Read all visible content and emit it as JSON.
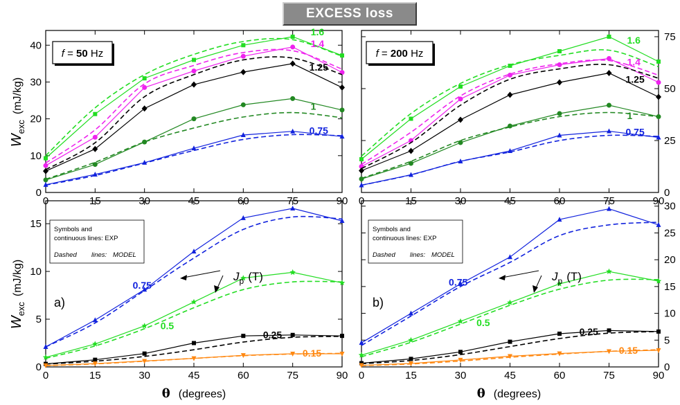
{
  "figure_title": "EXCESS  loss",
  "colors": {
    "1.6": "#22dd22",
    "1.4": "#ee22ee",
    "1.25": "#000000",
    "1": "#228822",
    "0.75": "#1122dd",
    "0.5": "#22dd22",
    "0.25": "#000000",
    "0.15": "#ff8811"
  },
  "legend": {
    "line1": "Symbols and",
    "line2": "continuous lines:   EXP",
    "dashed_a": "Dashed",
    "dashed_b": "lines:",
    "dashed_c": "MODEL"
  },
  "annotations": {
    "jp_J": "J",
    "jp_sub": "p",
    "jp_unit": "(T)",
    "panel_a": "a)",
    "panel_b": "b)",
    "freq_top_left_pre": "f",
    "freq_top_left_eq": " = ",
    "freq_top_left_val": "50",
    "freq_top_left_unit": " Hz",
    "freq_top_right_pre": "f",
    "freq_top_right_eq": " = ",
    "freq_top_right_val": "200",
    "freq_top_right_unit": " Hz"
  },
  "axis_text": {
    "ylabel_W": "W",
    "ylabel_sub": "exc",
    "ylabel_unit": "(mJ/kg)",
    "xlabel_theta": "θ",
    "xlabel_unit": "(degrees)"
  },
  "chart_data": [
    {
      "id": "top-left",
      "type": "line",
      "x": [
        0,
        15,
        30,
        45,
        60,
        75,
        90
      ],
      "xticks": [
        0,
        15,
        30,
        45,
        60,
        75,
        90
      ],
      "xlim": [
        0,
        90
      ],
      "ylim": [
        0,
        44
      ],
      "yticks": [
        0,
        10,
        20,
        30,
        40
      ],
      "yaxis_side": "left",
      "grid": false,
      "series": [
        {
          "name": "1.6",
          "marker": "square",
          "values": [
            9.3,
            21.3,
            31.0,
            36.0,
            40.0,
            42.3,
            37.2
          ],
          "model": [
            10.0,
            23.0,
            32.0,
            37.5,
            41.0,
            41.5,
            37.0
          ]
        },
        {
          "name": "1.4",
          "marker": "circle",
          "values": [
            7.3,
            15.0,
            28.5,
            33.0,
            37.0,
            39.5,
            32.6
          ],
          "model": [
            8.0,
            17.0,
            29.5,
            34.5,
            38.0,
            38.5,
            33.5
          ]
        },
        {
          "name": "1.25",
          "marker": "diamond",
          "values": [
            5.8,
            11.8,
            22.8,
            29.3,
            32.7,
            35.0,
            28.5
          ],
          "model": [
            6.2,
            13.5,
            26.0,
            32.0,
            36.0,
            36.5,
            32.0
          ]
        },
        {
          "name": "1",
          "marker": "circle",
          "values": [
            3.4,
            7.6,
            13.7,
            20.0,
            23.8,
            25.5,
            22.4
          ],
          "model": [
            3.6,
            8.2,
            13.7,
            17.5,
            20.5,
            21.7,
            20.3
          ]
        },
        {
          "name": "0.75",
          "marker": "triangle",
          "values": [
            2.1,
            4.9,
            8.1,
            12.0,
            15.6,
            16.6,
            15.2
          ],
          "model": [
            2.0,
            4.6,
            8.0,
            11.4,
            14.4,
            15.7,
            15.4
          ]
        }
      ]
    },
    {
      "id": "top-right",
      "type": "line",
      "x": [
        0,
        15,
        30,
        45,
        60,
        75,
        90
      ],
      "xticks": [
        0,
        15,
        30,
        45,
        60,
        75,
        90
      ],
      "xlim": [
        0,
        90
      ],
      "ylim": [
        0,
        78
      ],
      "yticks": [
        0,
        25,
        50,
        75
      ],
      "yaxis_side": "right",
      "grid": false,
      "series": [
        {
          "name": "1.6",
          "marker": "square",
          "values": [
            16.0,
            35.5,
            51.0,
            61.0,
            68.0,
            75.0,
            63.0
          ],
          "model": [
            17.5,
            38.0,
            52.5,
            61.5,
            66.0,
            68.5,
            60.5
          ]
        },
        {
          "name": "1.4",
          "marker": "circle",
          "values": [
            12.5,
            25.0,
            45.0,
            56.5,
            61.5,
            64.5,
            53.0
          ],
          "model": [
            13.5,
            29.0,
            46.5,
            57.0,
            62.0,
            63.5,
            56.5
          ]
        },
        {
          "name": "1.25",
          "marker": "diamond",
          "values": [
            10.5,
            20.0,
            35.0,
            47.0,
            53.0,
            57.5,
            46.0
          ],
          "model": [
            11.5,
            24.0,
            42.0,
            54.5,
            59.5,
            61.5,
            55.0
          ]
        },
        {
          "name": "1",
          "marker": "circle",
          "values": [
            6.5,
            14.0,
            24.0,
            32.0,
            38.0,
            42.0,
            36.5
          ],
          "model": [
            6.8,
            15.0,
            25.0,
            31.5,
            36.5,
            38.5,
            36.5
          ]
        },
        {
          "name": "0.75",
          "marker": "triangle",
          "values": [
            3.5,
            8.5,
            15.0,
            20.0,
            27.5,
            29.5,
            26.5
          ],
          "model": [
            3.5,
            8.5,
            15.0,
            19.5,
            25.0,
            27.5,
            27.0
          ]
        }
      ]
    },
    {
      "id": "bottom-left",
      "type": "line",
      "x": [
        0,
        15,
        30,
        45,
        60,
        75,
        90
      ],
      "xticks": [
        0,
        15,
        30,
        45,
        60,
        75,
        90
      ],
      "xlim": [
        0,
        90
      ],
      "ylim": [
        0,
        17.4
      ],
      "yticks": [
        0,
        5,
        10,
        15
      ],
      "yaxis_side": "left",
      "grid": false,
      "series": [
        {
          "name": "0.75",
          "marker": "triangle",
          "values": [
            2.1,
            4.9,
            8.1,
            12.1,
            15.6,
            16.6,
            15.3
          ],
          "model": [
            2.1,
            4.6,
            8.0,
            11.4,
            14.4,
            15.7,
            15.5
          ]
        },
        {
          "name": "0.5",
          "marker": "star",
          "values": [
            1.0,
            2.4,
            4.3,
            6.8,
            9.3,
            9.9,
            8.8
          ],
          "model": [
            0.9,
            2.2,
            4.0,
            6.2,
            8.1,
            8.9,
            8.9
          ]
        },
        {
          "name": "0.25",
          "marker": "square",
          "values": [
            0.32,
            0.75,
            1.4,
            2.5,
            3.25,
            3.35,
            3.25
          ],
          "model": [
            0.3,
            0.6,
            1.1,
            1.8,
            2.6,
            3.1,
            3.2
          ]
        },
        {
          "name": "0.15",
          "marker": "triangle-down",
          "values": [
            0.15,
            0.35,
            0.62,
            0.9,
            1.22,
            1.38,
            1.38
          ],
          "model": [
            0.13,
            0.32,
            0.6,
            0.9,
            1.18,
            1.35,
            1.42
          ]
        }
      ]
    },
    {
      "id": "bottom-right",
      "type": "line",
      "x": [
        0,
        15,
        30,
        45,
        60,
        75,
        90
      ],
      "xticks": [
        0,
        15,
        30,
        45,
        60,
        75,
        90
      ],
      "xlim": [
        0,
        90
      ],
      "ylim": [
        0,
        31
      ],
      "yticks": [
        0,
        5,
        10,
        15,
        20,
        25,
        30
      ],
      "yaxis_side": "right",
      "grid": false,
      "series": [
        {
          "name": "0.75",
          "marker": "triangle",
          "values": [
            4.5,
            10.0,
            15.5,
            20.5,
            27.5,
            29.5,
            26.5
          ],
          "model": [
            4.0,
            9.5,
            15.0,
            19.5,
            24.5,
            26.5,
            27.0
          ]
        },
        {
          "name": "0.5",
          "marker": "star",
          "values": [
            2.2,
            5.0,
            8.5,
            12.0,
            15.5,
            17.8,
            16.0
          ],
          "model": [
            1.9,
            4.6,
            8.0,
            11.5,
            14.5,
            16.2,
            16.3
          ]
        },
        {
          "name": "0.25",
          "marker": "square",
          "values": [
            0.7,
            1.5,
            2.8,
            4.7,
            6.2,
            6.8,
            6.6
          ],
          "model": [
            0.6,
            1.2,
            2.3,
            3.8,
            5.3,
            6.3,
            6.6
          ]
        },
        {
          "name": "0.15",
          "marker": "triangle-down",
          "values": [
            0.3,
            0.65,
            1.3,
            2.0,
            2.5,
            2.9,
            3.1
          ],
          "model": [
            0.25,
            0.55,
            1.1,
            1.8,
            2.4,
            2.9,
            3.2
          ]
        }
      ]
    }
  ]
}
